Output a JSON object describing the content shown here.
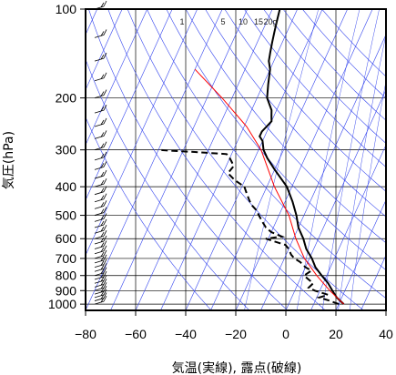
{
  "chart_data": {
    "type": "line",
    "title": "",
    "xlabel": "気温(実線), 露点(破線)",
    "ylabel": "気圧(hPa)",
    "xlim": [
      -80,
      40
    ],
    "ylim": [
      1050,
      100
    ],
    "y_scale": "log",
    "x_ticks": [
      "−80",
      "−60",
      "−40",
      "−20",
      "0",
      "20",
      "40"
    ],
    "x_tick_values": [
      -80,
      -60,
      -40,
      -20,
      0,
      20,
      40
    ],
    "y_ticks": [
      "100",
      "200",
      "300",
      "400",
      "500",
      "600",
      "700",
      "800",
      "900",
      "1000"
    ],
    "y_tick_values": [
      100,
      200,
      300,
      400,
      500,
      600,
      700,
      800,
      900,
      1000
    ],
    "mixing_ratio_labels": [
      "1",
      "5",
      "10",
      "15",
      "20g"
    ],
    "mixing_ratio_values": [
      1,
      5,
      10,
      15,
      20
    ],
    "grid": true,
    "skewed_isotherms": true,
    "series": [
      {
        "style": "solid",
        "color": "#000000",
        "pressure": [
          1000,
          950,
          900,
          850,
          800,
          750,
          700,
          650,
          600,
          550,
          500,
          450,
          400,
          350,
          320,
          300,
          280,
          270,
          260,
          250,
          240,
          230,
          220,
          200,
          180,
          160,
          150,
          140,
          130,
          120,
          110,
          100
        ],
        "temp": [
          22,
          18,
          15,
          12,
          8,
          4,
          1,
          -3,
          -6,
          -10,
          -13,
          -17,
          -22,
          -30,
          -35,
          -38,
          -40,
          -42,
          -42,
          -41,
          -40,
          -41,
          -42,
          -46,
          -48,
          -50,
          -52,
          -53,
          -54,
          -55,
          -56,
          -57
        ]
      },
      {
        "style": "dashed",
        "color": "#000000",
        "pressure": [
          1000,
          970,
          950,
          930,
          900,
          880,
          850,
          820,
          800,
          770,
          750,
          720,
          700,
          680,
          650,
          630,
          610,
          600,
          590,
          570,
          550,
          530,
          510,
          500,
          480,
          460,
          440,
          420,
          400,
          380,
          360,
          340,
          320,
          310,
          305,
          302,
          300
        ],
        "dewpoint": [
          20,
          15,
          11,
          14,
          8,
          5,
          6,
          3,
          1,
          3,
          0,
          -3,
          -6,
          -8,
          -10,
          -12,
          -18,
          -21,
          -15,
          -20,
          -23,
          -25,
          -27,
          -28,
          -30,
          -33,
          -35,
          -37,
          -39,
          -44,
          -48,
          -47,
          -50,
          -52,
          -65,
          -75,
          -80
        ]
      },
      {
        "style": "solid",
        "color": "#ff0000",
        "pressure": [
          1000,
          900,
          800,
          700,
          600,
          500,
          400,
          300,
          250,
          200,
          160
        ],
        "temp": [
          22,
          14,
          6,
          -2,
          -9,
          -16,
          -27,
          -39,
          -49,
          -64,
          -80
        ]
      }
    ]
  }
}
